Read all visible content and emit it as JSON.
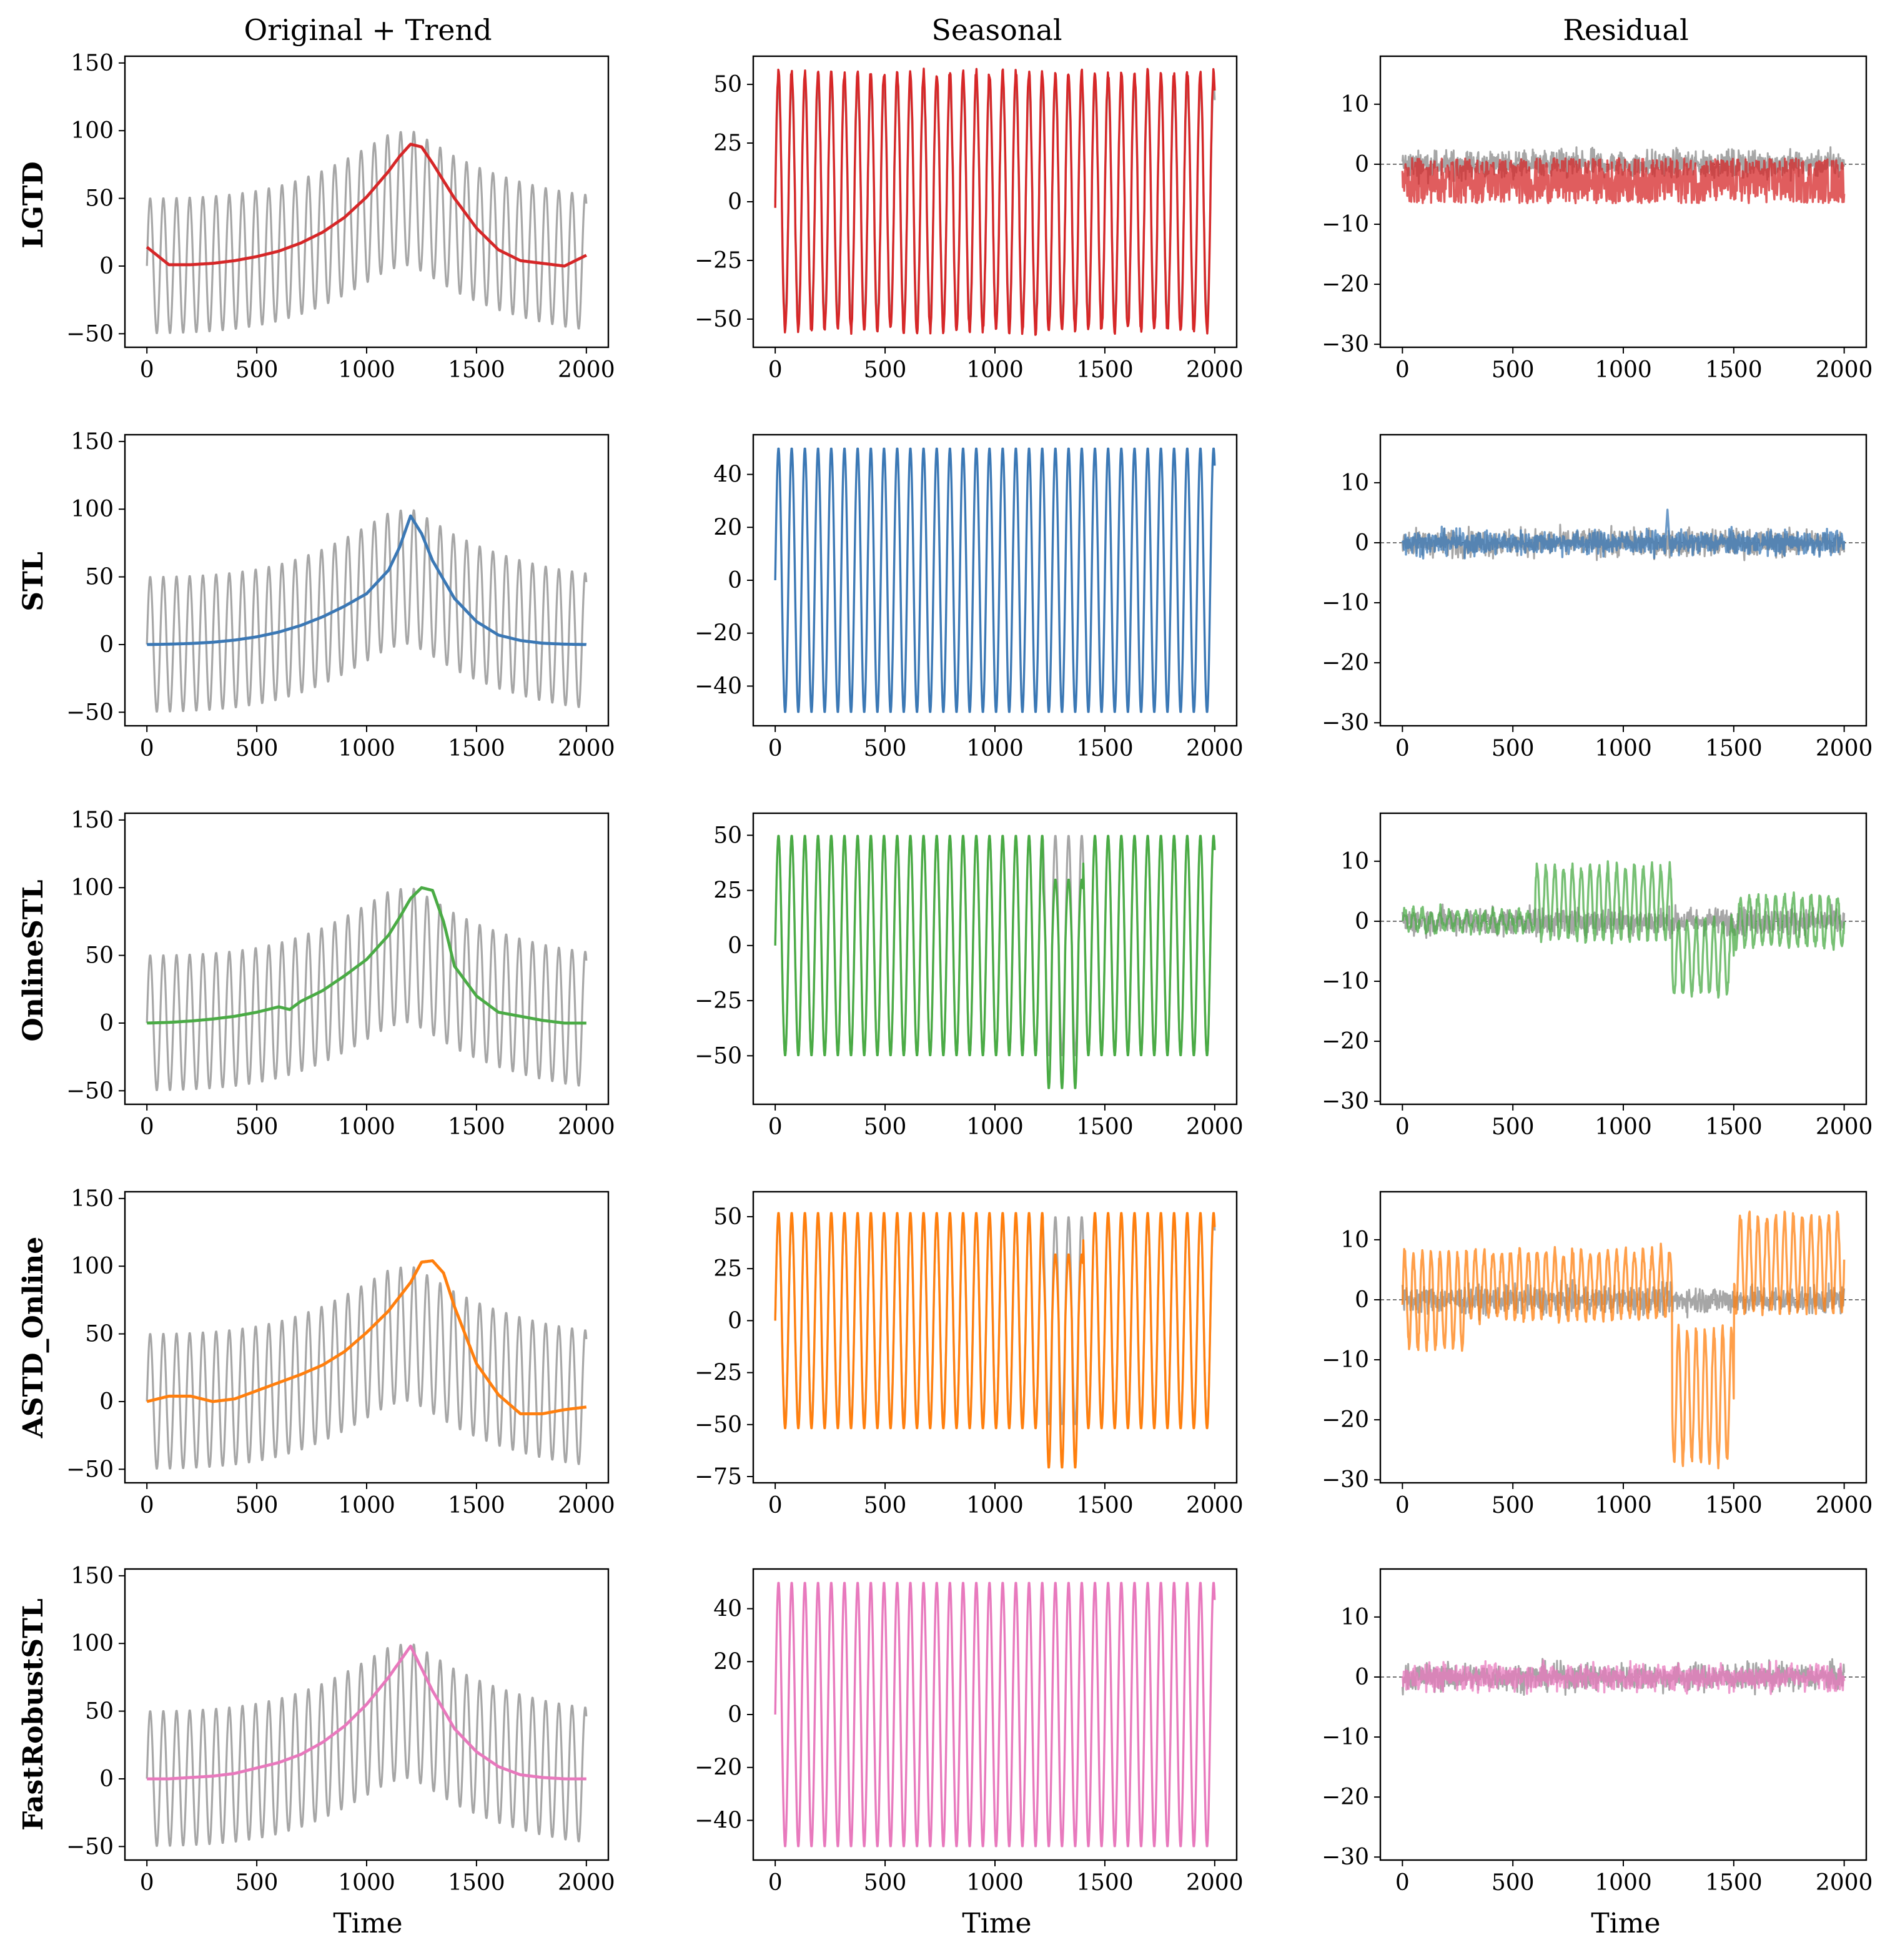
{
  "figure": {
    "column_titles": [
      "Original + Trend",
      "Seasonal",
      "Residual"
    ],
    "row_labels": [
      "LGTD",
      "STL",
      "OnlineSTL",
      "ASTD_Online",
      "FastRobustSTL"
    ],
    "xlabel": "Time"
  },
  "colors": {
    "original": "#a6a6a6",
    "LGTD": "#d62728",
    "STL": "#3b78b5",
    "OnlineSTL": "#4aab45",
    "ASTD_Online": "#ff7f0e",
    "FastRobustSTL": "#e879bd",
    "zero_line": "#555555"
  },
  "chart_data": [
    {
      "type": "line",
      "row": "LGTD",
      "panel": "Original + Trend",
      "xlabel": "",
      "ylabel": "LGTD",
      "xlim": [
        -100,
        2100
      ],
      "ylim": [
        -60,
        155
      ],
      "xticks": [
        0,
        500,
        1000,
        1500,
        2000
      ],
      "yticks": [
        -50,
        0,
        50,
        100,
        150
      ],
      "series": [
        {
          "role": "original",
          "x": [
            0,
            100,
            200,
            300,
            400,
            500,
            600,
            700,
            800,
            900,
            1000,
            1100,
            1200,
            1300,
            1400,
            1500,
            1600,
            1700,
            1800,
            1900,
            2000
          ],
          "y": [
            0.1,
            0.3,
            0.8,
            1.7,
            3.3,
            5.7,
            9.2,
            14.1,
            20.5,
            28.4,
            37.6,
            47.3,
            50.8,
            41.2,
            31.2,
            23.6,
            17.4,
            12.4,
            8.3,
            5.1,
            2.8
          ],
          "amplitude": 50,
          "period": 60
        },
        {
          "role": "trend",
          "x": [
            0,
            100,
            200,
            300,
            400,
            500,
            600,
            700,
            800,
            900,
            1000,
            1100,
            1150,
            1200,
            1250,
            1300,
            1400,
            1500,
            1600,
            1700,
            1800,
            1900,
            2000
          ],
          "y": [
            14,
            1,
            1,
            2,
            4,
            7,
            11,
            17,
            25,
            36,
            51,
            70,
            81,
            90,
            88,
            76,
            50,
            28,
            12,
            4,
            2,
            0,
            8
          ]
        }
      ]
    },
    {
      "type": "line",
      "row": "LGTD",
      "panel": "Seasonal",
      "xlim": [
        -100,
        2100
      ],
      "ylim": [
        -62,
        62
      ],
      "xticks": [
        0,
        500,
        1000,
        1500,
        2000
      ],
      "yticks": [
        -50,
        -25,
        0,
        25,
        50
      ],
      "series": [
        {
          "role": "original",
          "pattern": "sine",
          "amplitude": 50,
          "period": 60
        },
        {
          "role": "component",
          "pattern": "sine",
          "amplitude": 53,
          "period": 60,
          "peak_range": [
            52,
            58
          ],
          "trough_range": [
            -50,
            -55
          ]
        }
      ]
    },
    {
      "type": "line",
      "row": "LGTD",
      "panel": "Residual",
      "xlim": [
        -100,
        2100
      ],
      "ylim": [
        -30.5,
        18
      ],
      "xticks": [
        0,
        500,
        1000,
        1500,
        2000
      ],
      "yticks": [
        -30,
        -20,
        -10,
        0,
        10
      ],
      "series": [
        {
          "role": "original",
          "pattern": "noise",
          "mean": 0,
          "spread": 2.5
        },
        {
          "role": "component",
          "pattern": "noise",
          "mean": -3,
          "range": [
            -6.5,
            1
          ]
        }
      ]
    },
    {
      "type": "line",
      "row": "STL",
      "panel": "Original + Trend",
      "ylabel": "STL",
      "xlim": [
        -100,
        2100
      ],
      "ylim": [
        -60,
        155
      ],
      "xticks": [
        0,
        500,
        1000,
        1500,
        2000
      ],
      "yticks": [
        -50,
        0,
        50,
        100,
        150
      ],
      "series": [
        {
          "role": "original",
          "pattern": "same as LGTD row"
        },
        {
          "role": "trend",
          "x": [
            0,
            100,
            200,
            300,
            400,
            500,
            600,
            700,
            800,
            900,
            1000,
            1100,
            1150,
            1200,
            1250,
            1300,
            1400,
            1500,
            1600,
            1700,
            1800,
            1900,
            2000
          ],
          "y": [
            0,
            0.3,
            0.8,
            1.7,
            3.3,
            5.7,
            9.2,
            14.1,
            20.5,
            28.4,
            37.6,
            55,
            72,
            95,
            82,
            62,
            34,
            17,
            7,
            3,
            1,
            0.3,
            0
          ]
        }
      ]
    },
    {
      "type": "line",
      "row": "STL",
      "panel": "Seasonal",
      "xlim": [
        -100,
        2100
      ],
      "ylim": [
        -55,
        55
      ],
      "xticks": [
        0,
        500,
        1000,
        1500,
        2000
      ],
      "yticks": [
        -40,
        -20,
        0,
        20,
        40
      ],
      "series": [
        {
          "role": "component",
          "pattern": "sine",
          "amplitude": 50,
          "period": 60
        }
      ]
    },
    {
      "type": "line",
      "row": "STL",
      "panel": "Residual",
      "xlim": [
        -100,
        2100
      ],
      "ylim": [
        -30.5,
        18
      ],
      "xticks": [
        0,
        500,
        1000,
        1500,
        2000
      ],
      "yticks": [
        -30,
        -20,
        -10,
        0,
        10
      ],
      "series": [
        {
          "role": "original",
          "pattern": "noise",
          "mean": 0,
          "spread": 2.5
        },
        {
          "role": "component",
          "pattern": "noise",
          "mean": 0,
          "spread": 2.2,
          "spike": {
            "x": 1200,
            "y": 5.5
          }
        }
      ]
    },
    {
      "type": "line",
      "row": "OnlineSTL",
      "panel": "Original + Trend",
      "ylabel": "OnlineSTL",
      "xlim": [
        -100,
        2100
      ],
      "ylim": [
        -60,
        155
      ],
      "xticks": [
        0,
        500,
        1000,
        1500,
        2000
      ],
      "yticks": [
        -50,
        0,
        50,
        100,
        150
      ],
      "series": [
        {
          "role": "original",
          "pattern": "same as LGTD row"
        },
        {
          "role": "trend",
          "x": [
            0,
            100,
            200,
            300,
            400,
            500,
            600,
            650,
            700,
            800,
            900,
            1000,
            1100,
            1150,
            1200,
            1250,
            1300,
            1350,
            1400,
            1500,
            1600,
            1700,
            1800,
            1900,
            2000
          ],
          "y": [
            0,
            0.5,
            1.5,
            3,
            5,
            8,
            12,
            10,
            16,
            24,
            35,
            47,
            65,
            78,
            92,
            100,
            98,
            75,
            42,
            20,
            8,
            5,
            2,
            0,
            0
          ]
        }
      ]
    },
    {
      "type": "line",
      "row": "OnlineSTL",
      "panel": "Seasonal",
      "xlim": [
        -100,
        2100
      ],
      "ylim": [
        -72,
        60
      ],
      "xticks": [
        0,
        500,
        1000,
        1500,
        2000
      ],
      "yticks": [
        -50,
        -25,
        0,
        25,
        50
      ],
      "series": [
        {
          "role": "original",
          "pattern": "sine",
          "amplitude": 50,
          "period": 60
        },
        {
          "role": "component",
          "pattern": "sine",
          "amplitude": 50,
          "period": 60,
          "distortion": {
            "x_range": [
              1220,
              1400
            ],
            "min": -65,
            "damped_peaks": 30
          }
        }
      ]
    },
    {
      "type": "line",
      "row": "OnlineSTL",
      "panel": "Residual",
      "xlim": [
        -100,
        2100
      ],
      "ylim": [
        -30.5,
        18
      ],
      "xticks": [
        0,
        500,
        1000,
        1500,
        2000
      ],
      "yticks": [
        -30,
        -20,
        -10,
        0,
        10
      ],
      "series": [
        {
          "role": "original",
          "pattern": "noise",
          "mean": 0,
          "spread": 2.5
        },
        {
          "role": "component",
          "segments": [
            {
              "x_range": [
                0,
                600
              ],
              "mean": 0,
              "amplitude": 1.5
            },
            {
              "x_range": [
                600,
                1220
              ],
              "mean": 3,
              "amplitude": 6
            },
            {
              "x_range": [
                1220,
                1500
              ],
              "mean": -6,
              "amplitude": 6
            },
            {
              "x_range": [
                1500,
                2000
              ],
              "mean": 0,
              "amplitude": 4
            }
          ]
        }
      ]
    },
    {
      "type": "line",
      "row": "ASTD_Online",
      "panel": "Original + Trend",
      "ylabel": "ASTD_Online",
      "xlim": [
        -100,
        2100
      ],
      "ylim": [
        -60,
        155
      ],
      "xticks": [
        0,
        500,
        1000,
        1500,
        2000
      ],
      "yticks": [
        -50,
        0,
        50,
        100,
        150
      ],
      "series": [
        {
          "role": "original",
          "pattern": "same as LGTD row"
        },
        {
          "role": "trend",
          "x": [
            0,
            100,
            200,
            300,
            400,
            500,
            600,
            700,
            800,
            900,
            1000,
            1100,
            1200,
            1250,
            1300,
            1350,
            1400,
            1500,
            1600,
            1700,
            1800,
            1900,
            2000
          ],
          "y": [
            0,
            4,
            4,
            0,
            2,
            8,
            14,
            20,
            27,
            37,
            51,
            67,
            88,
            103,
            104,
            95,
            70,
            28,
            5,
            -9,
            -9,
            -6,
            -4
          ]
        }
      ]
    },
    {
      "type": "line",
      "row": "ASTD_Online",
      "panel": "Seasonal",
      "xlim": [
        -100,
        2100
      ],
      "ylim": [
        -78,
        62
      ],
      "xticks": [
        0,
        500,
        1000,
        1500,
        2000
      ],
      "yticks": [
        -75,
        -50,
        -25,
        0,
        25,
        50
      ],
      "series": [
        {
          "role": "original",
          "pattern": "sine",
          "amplitude": 50,
          "period": 60
        },
        {
          "role": "component",
          "pattern": "sine",
          "amplitude": 52,
          "period": 60,
          "distortion": {
            "x_range": [
              1220,
              1400
            ],
            "min": -71,
            "damped_peaks": 32
          }
        }
      ]
    },
    {
      "type": "line",
      "row": "ASTD_Online",
      "panel": "Residual",
      "xlim": [
        -100,
        2100
      ],
      "ylim": [
        -30.5,
        18
      ],
      "xticks": [
        0,
        500,
        1000,
        1500,
        2000
      ],
      "yticks": [
        -30,
        -20,
        -10,
        0,
        10
      ],
      "series": [
        {
          "role": "original",
          "pattern": "noise",
          "mean": 0,
          "spread": 2.5
        },
        {
          "role": "component",
          "segments": [
            {
              "x_range": [
                0,
                300
              ],
              "mean": 0,
              "amplitude": 8
            },
            {
              "x_range": [
                300,
                1220
              ],
              "mean": 2.5,
              "amplitude": 5.5
            },
            {
              "x_range": [
                1220,
                1500
              ],
              "mean": -16,
              "amplitude": 11
            },
            {
              "x_range": [
                1500,
                2000
              ],
              "mean": 6,
              "amplitude": 8
            }
          ]
        }
      ]
    },
    {
      "type": "line",
      "row": "FastRobustSTL",
      "panel": "Original + Trend",
      "xlabel": "Time",
      "ylabel": "FastRobustSTL",
      "xlim": [
        -100,
        2100
      ],
      "ylim": [
        -60,
        155
      ],
      "xticks": [
        0,
        500,
        1000,
        1500,
        2000
      ],
      "yticks": [
        -50,
        0,
        50,
        100,
        150
      ],
      "series": [
        {
          "role": "original",
          "pattern": "same as LGTD row"
        },
        {
          "role": "trend",
          "x": [
            0,
            100,
            200,
            300,
            400,
            500,
            600,
            700,
            800,
            900,
            1000,
            1100,
            1200,
            1300,
            1400,
            1500,
            1600,
            1700,
            1800,
            1900,
            2000
          ],
          "y": [
            0,
            0,
            1,
            2,
            4,
            8,
            12,
            18,
            27,
            39,
            55,
            75,
            98,
            65,
            37,
            20,
            9,
            3,
            1,
            0,
            0
          ]
        }
      ]
    },
    {
      "type": "line",
      "row": "FastRobustSTL",
      "panel": "Seasonal",
      "xlabel": "Time",
      "xlim": [
        -100,
        2100
      ],
      "ylim": [
        -55,
        55
      ],
      "xticks": [
        0,
        500,
        1000,
        1500,
        2000
      ],
      "yticks": [
        -40,
        -20,
        0,
        20,
        40
      ],
      "series": [
        {
          "role": "component",
          "pattern": "sine",
          "amplitude": 50,
          "period": 60
        }
      ]
    },
    {
      "type": "line",
      "row": "FastRobustSTL",
      "panel": "Residual",
      "xlabel": "Time",
      "xlim": [
        -100,
        2100
      ],
      "ylim": [
        -30.5,
        18
      ],
      "xticks": [
        0,
        500,
        1000,
        1500,
        2000
      ],
      "yticks": [
        -30,
        -20,
        -10,
        0,
        10
      ],
      "series": [
        {
          "role": "original",
          "pattern": "noise",
          "mean": 0,
          "spread": 2.5
        },
        {
          "role": "component",
          "pattern": "noise",
          "mean": 0,
          "spread": 2.5
        }
      ]
    }
  ]
}
